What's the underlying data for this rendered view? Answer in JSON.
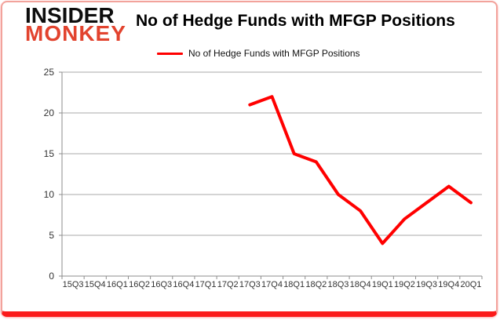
{
  "header": {
    "logo_line1": "INSIDER",
    "logo_line2": "MONKEY",
    "title": "No of Hedge Funds with MFGP Positions"
  },
  "legend": {
    "label": "No of Hedge Funds with MFGP Positions"
  },
  "colors": {
    "line": "#ff0000",
    "logo_red": "#e2432e",
    "gridline": "#aaaaaa",
    "axis": "#8c8c8c",
    "tick_label": "#333333",
    "frame_border": "#fb1a1a"
  },
  "chart_data": {
    "type": "line",
    "title": "No of Hedge Funds with MFGP Positions",
    "categories": [
      "15Q3",
      "15Q4",
      "16Q1",
      "16Q2",
      "16Q3",
      "16Q4",
      "17Q1",
      "17Q2",
      "17Q3",
      "17Q4",
      "18Q1",
      "18Q2",
      "18Q3",
      "18Q4",
      "19Q1",
      "19Q2",
      "19Q3",
      "19Q4",
      "20Q1"
    ],
    "series": [
      {
        "name": "No of Hedge Funds with MFGP Positions",
        "color": "#ff0000",
        "values": [
          null,
          null,
          null,
          null,
          null,
          null,
          null,
          null,
          21,
          22,
          15,
          14,
          10,
          8,
          4,
          7,
          9,
          11,
          9
        ]
      }
    ],
    "xlabel": "",
    "ylabel": "",
    "ylim": [
      0,
      25
    ],
    "ytick_step": 5,
    "grid": true,
    "legend_position": "top"
  }
}
